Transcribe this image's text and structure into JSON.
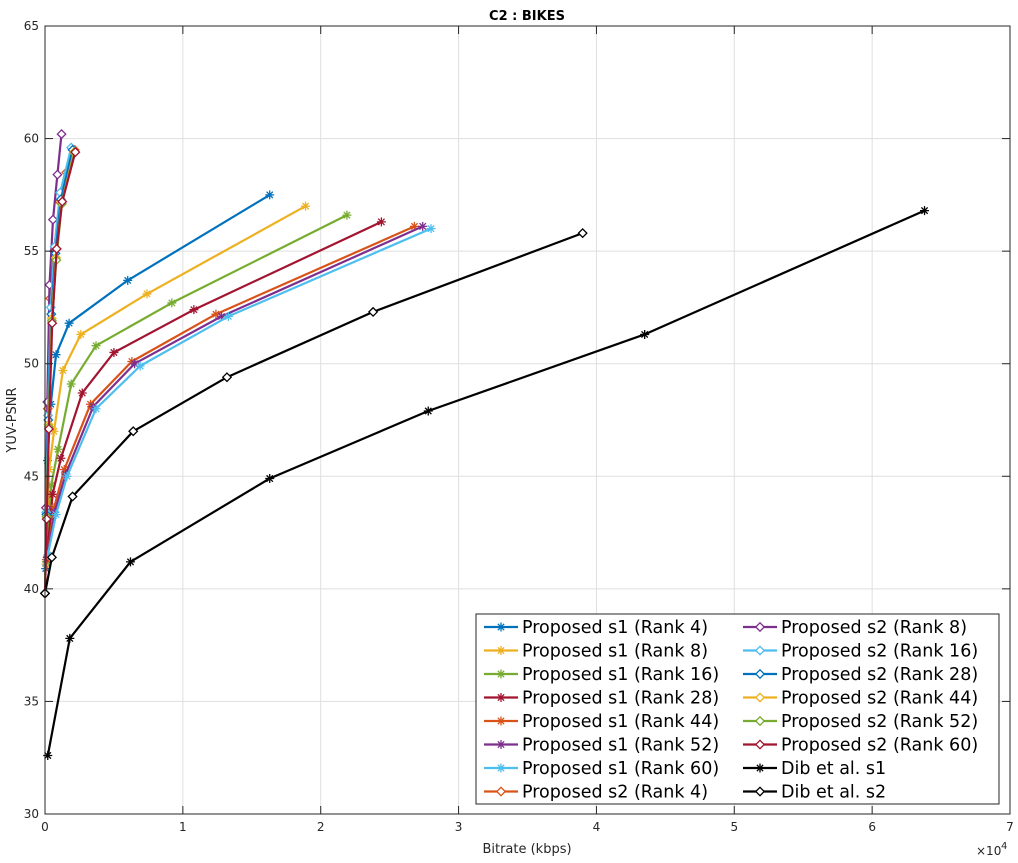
{
  "chart_data": {
    "type": "line",
    "title": "C2 : BIKES",
    "xlabel": "Bitrate (kbps)",
    "ylabel": "YUV-PSNR",
    "x_exponent_label": "×10",
    "x_exponent_power": "4",
    "xlim": [
      0,
      70000
    ],
    "ylim": [
      30,
      65
    ],
    "x_ticks": [
      0,
      10000,
      20000,
      30000,
      40000,
      50000,
      60000,
      70000
    ],
    "x_tick_labels": [
      "0",
      "1",
      "2",
      "3",
      "4",
      "5",
      "6",
      "7"
    ],
    "y_ticks": [
      30,
      35,
      40,
      45,
      50,
      55,
      60,
      65
    ],
    "y_tick_labels": [
      "30",
      "35",
      "40",
      "45",
      "50",
      "55",
      "60",
      "65"
    ],
    "grid": true,
    "legend_position": "bottom-right",
    "legend_columns": 2,
    "series": [
      {
        "name": "Proposed s1 (Rank 4)",
        "color": "#0072BD",
        "marker": "star",
        "x": [
          50,
          180,
          420,
          800,
          1750,
          6000,
          16300
        ],
        "y": [
          40.9,
          45.7,
          48.2,
          50.4,
          51.8,
          53.7,
          57.5
        ]
      },
      {
        "name": "Proposed s1 (Rank 8)",
        "color": "#EDB120",
        "marker": "star",
        "x": [
          80,
          300,
          650,
          1300,
          2600,
          7400,
          18900
        ],
        "y": [
          41.1,
          45.3,
          47.0,
          49.7,
          51.3,
          53.1,
          57.0
        ]
      },
      {
        "name": "Proposed s1 (Rank 16)",
        "color": "#77AC30",
        "marker": "star",
        "x": [
          100,
          450,
          950,
          1900,
          3700,
          9200,
          21900
        ],
        "y": [
          41.2,
          44.6,
          46.2,
          49.1,
          50.8,
          52.7,
          56.6
        ]
      },
      {
        "name": "Proposed s1 (Rank 28)",
        "color": "#A2142F",
        "marker": "star",
        "x": [
          120,
          550,
          1150,
          2700,
          5000,
          10800,
          24400
        ],
        "y": [
          41.3,
          44.2,
          45.8,
          48.7,
          50.5,
          52.4,
          56.3
        ]
      },
      {
        "name": "Proposed s1 (Rank 44)",
        "color": "#D95319",
        "marker": "star",
        "x": [
          150,
          650,
          1400,
          3300,
          6300,
          12400,
          26800
        ],
        "y": [
          41.3,
          43.6,
          45.3,
          48.2,
          50.1,
          52.2,
          56.1
        ]
      },
      {
        "name": "Proposed s1 (Rank 52)",
        "color": "#7E2F8E",
        "marker": "star",
        "x": [
          170,
          700,
          1500,
          3500,
          6500,
          12800,
          27400
        ],
        "y": [
          41.4,
          43.4,
          45.1,
          48.1,
          50.0,
          52.1,
          56.1
        ]
      },
      {
        "name": "Proposed s1 (Rank 60)",
        "color": "#4DBEEE",
        "marker": "star",
        "x": [
          200,
          800,
          1600,
          3700,
          6900,
          13300,
          28000
        ],
        "y": [
          41.5,
          43.3,
          45.0,
          48.0,
          49.9,
          52.1,
          56.0
        ]
      },
      {
        "name": "Proposed s2 (Rank 4)",
        "color": "#D95319",
        "marker": "diamond",
        "x": [
          0,
          80,
          200,
          380,
          650,
          1050,
          1550,
          2150
        ],
        "y": [
          39.8,
          43.6,
          48.0,
          52.9,
          55.0,
          57.2,
          58.5,
          59.5
        ]
      },
      {
        "name": "Proposed s2 (Rank 8)",
        "color": "#7E2F8E",
        "marker": "diamond",
        "x": [
          0,
          70,
          170,
          330,
          580,
          900,
          1200
        ],
        "y": [
          39.8,
          43.6,
          48.3,
          53.5,
          56.4,
          58.4,
          60.2
        ]
      },
      {
        "name": "Proposed s2 (Rank 16)",
        "color": "#4DBEEE",
        "marker": "diamond",
        "x": [
          0,
          90,
          220,
          420,
          700,
          1100,
          1900
        ],
        "y": [
          39.8,
          43.4,
          47.7,
          52.5,
          55.2,
          57.6,
          59.6
        ]
      },
      {
        "name": "Proposed s2 (Rank 28)",
        "color": "#0072BD",
        "marker": "diamond",
        "x": [
          0,
          100,
          240,
          460,
          760,
          1150,
          2000
        ],
        "y": [
          39.8,
          43.3,
          47.5,
          52.2,
          54.9,
          57.3,
          59.5
        ]
      },
      {
        "name": "Proposed s2 (Rank 44)",
        "color": "#EDB120",
        "marker": "diamond",
        "x": [
          0,
          110,
          260,
          490,
          800,
          1200,
          2100
        ],
        "y": [
          39.8,
          43.2,
          47.3,
          52.0,
          54.7,
          57.1,
          59.4
        ]
      },
      {
        "name": "Proposed s2 (Rank 52)",
        "color": "#77AC30",
        "marker": "diamond",
        "x": [
          0,
          115,
          270,
          500,
          820,
          1220,
          2150
        ],
        "y": [
          39.8,
          43.2,
          47.2,
          51.9,
          54.6,
          57.1,
          59.4
        ]
      },
      {
        "name": "Proposed s2 (Rank 60)",
        "color": "#A2142F",
        "marker": "diamond",
        "x": [
          0,
          120,
          280,
          520,
          850,
          1250,
          2200
        ],
        "y": [
          39.8,
          43.1,
          47.1,
          51.8,
          55.1,
          57.2,
          59.4
        ]
      },
      {
        "name": "Dib et al. s1",
        "color": "#000000",
        "marker": "star",
        "x": [
          200,
          1800,
          6200,
          16300,
          27800,
          43500,
          63800
        ],
        "y": [
          32.6,
          37.8,
          41.2,
          44.9,
          47.9,
          51.3,
          56.8
        ]
      },
      {
        "name": "Dib et al. s2",
        "color": "#000000",
        "marker": "diamond",
        "x": [
          0,
          500,
          2000,
          6400,
          13200,
          23800,
          39000
        ],
        "y": [
          39.8,
          41.4,
          44.1,
          47.0,
          49.4,
          52.3,
          55.8
        ]
      }
    ]
  }
}
